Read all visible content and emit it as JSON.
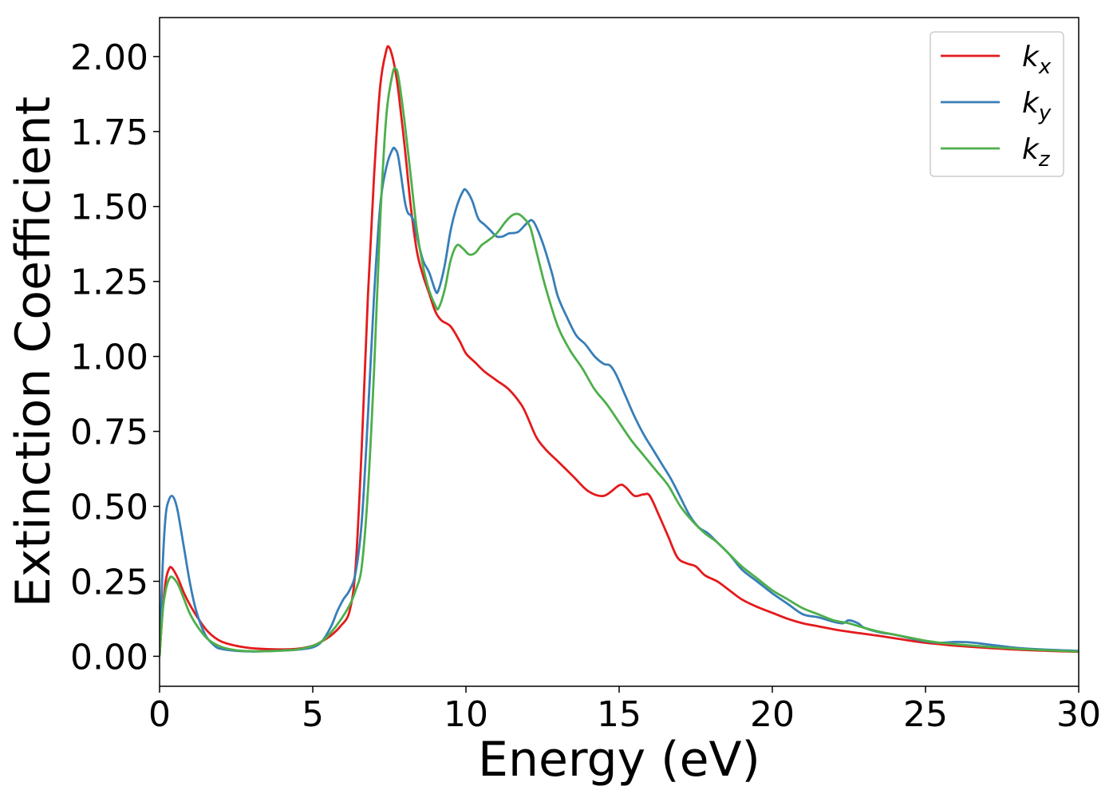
{
  "chart_data": {
    "type": "line",
    "xlabel": "Energy (eV)",
    "ylabel": "Extinction Coefficient",
    "xlim": [
      0,
      30
    ],
    "ylim": [
      -0.1,
      2.13
    ],
    "xticks": [
      0,
      5,
      10,
      15,
      20,
      25,
      30
    ],
    "xtick_labels": [
      "0",
      "5",
      "10",
      "15",
      "20",
      "25",
      "30"
    ],
    "yticks": [
      0.0,
      0.25,
      0.5,
      0.75,
      1.0,
      1.25,
      1.5,
      1.75,
      2.0
    ],
    "ytick_labels": [
      "0.00",
      "0.25",
      "0.50",
      "0.75",
      "1.00",
      "1.25",
      "1.50",
      "1.75",
      "2.00"
    ],
    "grid": false,
    "legend_position": "top-right",
    "series": [
      {
        "name": "k",
        "subscript": "x",
        "color": "#e41a1c",
        "x": [
          0,
          0.1,
          0.2,
          0.3,
          0.4,
          0.6,
          0.8,
          1.0,
          1.3,
          1.6,
          2.0,
          2.5,
          3.0,
          3.5,
          4.0,
          4.5,
          5.0,
          5.3,
          5.6,
          5.9,
          6.2,
          6.4,
          6.6,
          6.8,
          7.0,
          7.2,
          7.4,
          7.5,
          7.6,
          7.7,
          7.8,
          8.0,
          8.2,
          8.4,
          8.6,
          8.8,
          9.0,
          9.2,
          9.5,
          9.8,
          10.0,
          10.3,
          10.6,
          11.0,
          11.4,
          11.8,
          12.0,
          12.3,
          12.6,
          13.0,
          13.5,
          14.0,
          14.5,
          15.0,
          15.2,
          15.5,
          15.8,
          16.0,
          16.3,
          16.6,
          16.9,
          17.2,
          17.5,
          17.8,
          18.2,
          18.6,
          19.0,
          19.5,
          20.0,
          20.5,
          21.0,
          21.5,
          22.0,
          22.5,
          23.0,
          23.5,
          24.0,
          24.5,
          25.0,
          25.5,
          26.0,
          27.0,
          28.0,
          29.0,
          30.0
        ],
        "y": [
          0.0,
          0.15,
          0.25,
          0.29,
          0.295,
          0.26,
          0.21,
          0.17,
          0.12,
          0.08,
          0.05,
          0.035,
          0.027,
          0.024,
          0.023,
          0.025,
          0.035,
          0.05,
          0.07,
          0.1,
          0.15,
          0.3,
          0.7,
          1.2,
          1.6,
          1.9,
          2.02,
          2.03,
          2.0,
          1.95,
          1.88,
          1.7,
          1.5,
          1.35,
          1.27,
          1.21,
          1.15,
          1.12,
          1.1,
          1.05,
          1.01,
          0.98,
          0.95,
          0.92,
          0.89,
          0.84,
          0.8,
          0.73,
          0.69,
          0.65,
          0.6,
          0.55,
          0.535,
          0.57,
          0.565,
          0.535,
          0.54,
          0.535,
          0.47,
          0.4,
          0.33,
          0.31,
          0.3,
          0.27,
          0.25,
          0.22,
          0.19,
          0.165,
          0.145,
          0.125,
          0.11,
          0.1,
          0.09,
          0.082,
          0.075,
          0.068,
          0.06,
          0.052,
          0.045,
          0.04,
          0.035,
          0.028,
          0.022,
          0.018,
          0.015
        ]
      },
      {
        "name": "k",
        "subscript": "y",
        "color": "#377eb8",
        "x": [
          0,
          0.1,
          0.2,
          0.3,
          0.4,
          0.5,
          0.6,
          0.8,
          1.0,
          1.2,
          1.5,
          1.8,
          2.0,
          2.5,
          3.0,
          3.5,
          4.0,
          4.5,
          5.0,
          5.3,
          5.6,
          5.8,
          6.0,
          6.2,
          6.4,
          6.6,
          6.8,
          7.0,
          7.2,
          7.4,
          7.6,
          7.7,
          7.8,
          8.0,
          8.1,
          8.2,
          8.3,
          8.4,
          8.6,
          8.8,
          9.0,
          9.1,
          9.3,
          9.5,
          9.7,
          9.9,
          10.0,
          10.2,
          10.4,
          10.6,
          10.8,
          11.0,
          11.2,
          11.4,
          11.7,
          12.0,
          12.2,
          12.5,
          12.8,
          13.0,
          13.3,
          13.6,
          13.9,
          14.2,
          14.5,
          14.7,
          14.9,
          15.2,
          15.5,
          15.8,
          16.1,
          16.4,
          16.7,
          17.0,
          17.3,
          17.6,
          17.9,
          18.2,
          18.6,
          19.0,
          19.5,
          20.0,
          20.5,
          21.0,
          21.5,
          22.0,
          22.3,
          22.5,
          22.8,
          23.0,
          23.5,
          24.0,
          24.5,
          25.0,
          25.5,
          26.0,
          26.5,
          27.0,
          28.0,
          29.0,
          30.0
        ],
        "y": [
          0.0,
          0.3,
          0.47,
          0.52,
          0.535,
          0.52,
          0.48,
          0.36,
          0.24,
          0.15,
          0.07,
          0.035,
          0.025,
          0.018,
          0.016,
          0.017,
          0.019,
          0.022,
          0.03,
          0.05,
          0.1,
          0.15,
          0.19,
          0.22,
          0.28,
          0.45,
          0.8,
          1.2,
          1.5,
          1.63,
          1.69,
          1.69,
          1.66,
          1.52,
          1.48,
          1.47,
          1.45,
          1.4,
          1.32,
          1.28,
          1.22,
          1.22,
          1.3,
          1.42,
          1.5,
          1.55,
          1.555,
          1.52,
          1.46,
          1.44,
          1.42,
          1.4,
          1.4,
          1.41,
          1.415,
          1.445,
          1.45,
          1.38,
          1.28,
          1.2,
          1.13,
          1.07,
          1.04,
          1.0,
          0.975,
          0.97,
          0.94,
          0.87,
          0.8,
          0.74,
          0.69,
          0.64,
          0.59,
          0.53,
          0.47,
          0.43,
          0.41,
          0.38,
          0.34,
          0.29,
          0.25,
          0.21,
          0.175,
          0.14,
          0.13,
          0.115,
          0.11,
          0.12,
          0.11,
          0.095,
          0.08,
          0.072,
          0.06,
          0.05,
          0.045,
          0.048,
          0.046,
          0.04,
          0.028,
          0.022,
          0.018
        ]
      },
      {
        "name": "k",
        "subscript": "z",
        "color": "#4daf4a",
        "x": [
          0,
          0.1,
          0.2,
          0.3,
          0.4,
          0.6,
          0.8,
          1.0,
          1.3,
          1.6,
          2.0,
          2.5,
          3.0,
          3.5,
          4.0,
          4.5,
          5.0,
          5.3,
          5.6,
          5.9,
          6.2,
          6.4,
          6.6,
          6.8,
          7.0,
          7.2,
          7.4,
          7.6,
          7.7,
          7.8,
          8.0,
          8.2,
          8.4,
          8.6,
          8.8,
          9.0,
          9.1,
          9.3,
          9.5,
          9.7,
          9.9,
          10.1,
          10.3,
          10.5,
          10.7,
          11.0,
          11.3,
          11.5,
          11.7,
          11.9,
          12.1,
          12.3,
          12.6,
          13.0,
          13.4,
          13.8,
          14.2,
          14.6,
          15.0,
          15.4,
          15.8,
          16.2,
          16.6,
          17.0,
          17.4,
          17.8,
          18.2,
          18.6,
          19.0,
          19.5,
          20.0,
          20.5,
          21.0,
          21.5,
          22.0,
          22.5,
          23.0,
          23.5,
          24.0,
          24.5,
          25.0,
          25.5,
          26.0,
          27.0,
          28.0,
          29.0,
          30.0
        ],
        "y": [
          0.0,
          0.15,
          0.22,
          0.255,
          0.265,
          0.24,
          0.19,
          0.14,
          0.09,
          0.055,
          0.032,
          0.02,
          0.017,
          0.017,
          0.019,
          0.023,
          0.035,
          0.05,
          0.08,
          0.12,
          0.17,
          0.22,
          0.3,
          0.55,
          0.95,
          1.45,
          1.8,
          1.94,
          1.96,
          1.93,
          1.78,
          1.6,
          1.42,
          1.3,
          1.22,
          1.17,
          1.16,
          1.22,
          1.32,
          1.37,
          1.36,
          1.34,
          1.345,
          1.37,
          1.385,
          1.41,
          1.45,
          1.47,
          1.475,
          1.46,
          1.43,
          1.35,
          1.23,
          1.1,
          1.02,
          0.96,
          0.89,
          0.84,
          0.78,
          0.72,
          0.67,
          0.62,
          0.57,
          0.5,
          0.45,
          0.41,
          0.38,
          0.34,
          0.3,
          0.26,
          0.22,
          0.19,
          0.16,
          0.14,
          0.12,
          0.11,
          0.095,
          0.082,
          0.072,
          0.062,
          0.052,
          0.045,
          0.04,
          0.032,
          0.025,
          0.02,
          0.016
        ]
      }
    ]
  }
}
